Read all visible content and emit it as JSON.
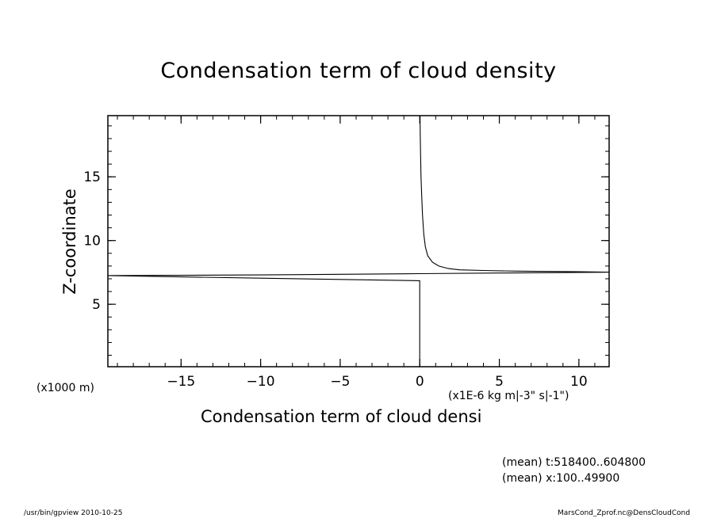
{
  "chart_data": {
    "type": "line",
    "title": "Condensation term of cloud density",
    "xlabel": "Condensation term of cloud densi",
    "ylabel": "Z-coordinate",
    "x_units": "(x1E-6 kg m|-3\" s|-1\")",
    "y_units": "(x1000 m)",
    "xlim": [
      -19.6,
      11.9
    ],
    "ylim": [
      0.1,
      19.8
    ],
    "x_ticks": [
      -15,
      -10,
      -5,
      0,
      5,
      10
    ],
    "x_tick_labels": [
      "−15",
      "−10",
      "−5",
      "0",
      "5",
      "10"
    ],
    "y_ticks": [
      5,
      10,
      15
    ],
    "y_tick_labels": [
      "5",
      "10",
      "15"
    ],
    "x_minor_step": 1,
    "y_minor_step": 1,
    "grid": false,
    "series": [
      {
        "points": [
          [
            0.0,
            0.1
          ],
          [
            0.0,
            6.0
          ],
          [
            0.0,
            6.85
          ],
          [
            -5.0,
            6.95
          ],
          [
            -10.0,
            7.05
          ],
          [
            -15.0,
            7.15
          ],
          [
            -19.6,
            7.25
          ],
          [
            -15.0,
            7.27
          ],
          [
            -10.0,
            7.3
          ],
          [
            -5.0,
            7.35
          ],
          [
            0.0,
            7.4
          ],
          [
            5.0,
            7.45
          ],
          [
            10.0,
            7.5
          ],
          [
            11.9,
            7.52
          ],
          [
            10.0,
            7.55
          ],
          [
            6.0,
            7.6
          ],
          [
            4.0,
            7.65
          ],
          [
            2.5,
            7.7
          ],
          [
            1.8,
            7.8
          ],
          [
            1.2,
            8.0
          ],
          [
            0.8,
            8.3
          ],
          [
            0.5,
            8.8
          ],
          [
            0.35,
            9.5
          ],
          [
            0.25,
            10.5
          ],
          [
            0.17,
            12.0
          ],
          [
            0.12,
            13.5
          ],
          [
            0.08,
            15.0
          ],
          [
            0.05,
            17.0
          ],
          [
            0.03,
            18.5
          ],
          [
            0.02,
            19.8
          ]
        ]
      }
    ]
  },
  "notes": {
    "mean_t": "(mean) t:518400..604800",
    "mean_x": "(mean) x:100..49900"
  },
  "footer": {
    "left": "/usr/bin/gpview   2010-10-25",
    "right": "MarsCond_Zprof.nc@DensCloudCond"
  }
}
